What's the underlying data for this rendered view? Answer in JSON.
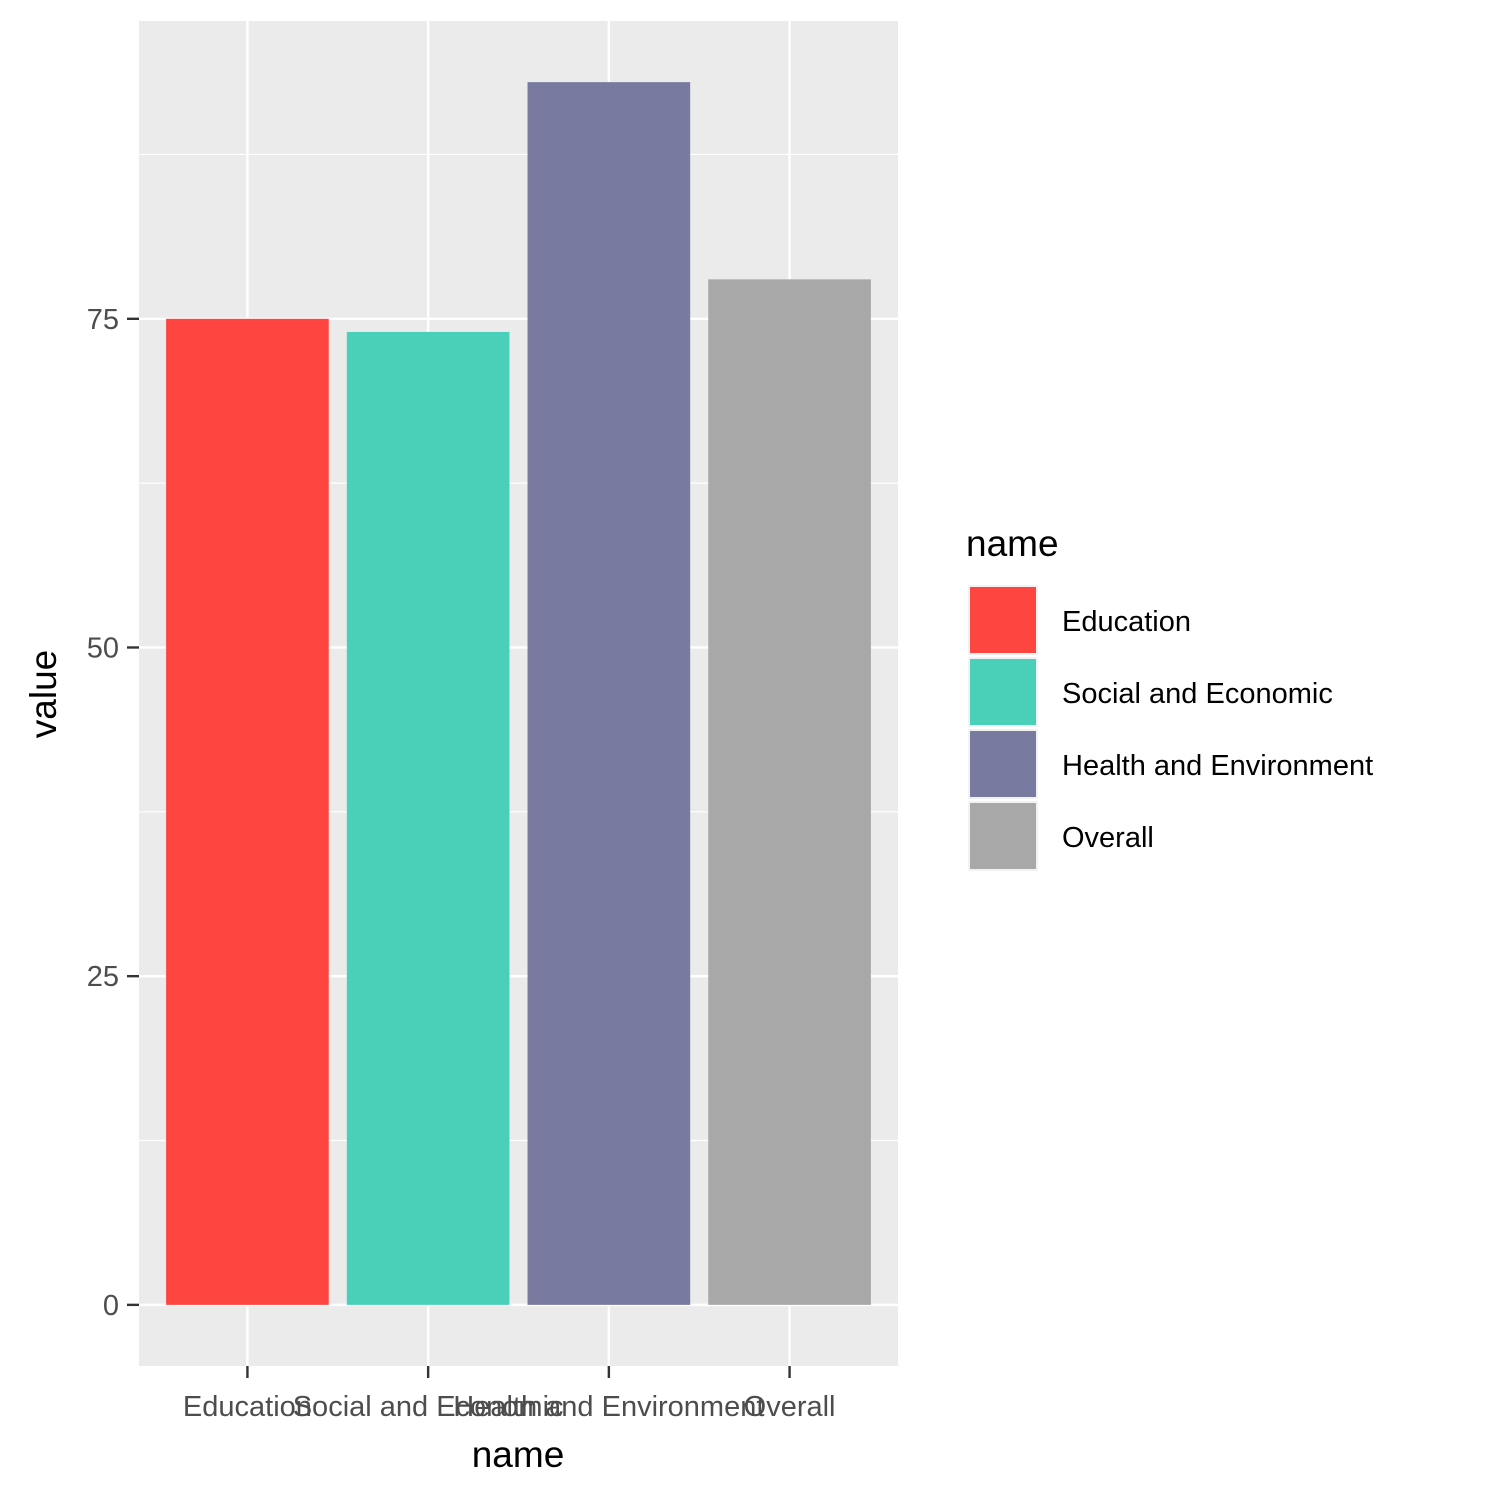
{
  "chart_data": {
    "type": "bar",
    "xlabel": "name",
    "ylabel": "value",
    "categories": [
      "Education",
      "Social and Economic",
      "Health and Environment",
      "Overall"
    ],
    "values": [
      75,
      74,
      93,
      78
    ],
    "colors": [
      "#FF4540",
      "#4AD0B8",
      "#797A9F",
      "#A8A8A8"
    ],
    "yticks": [
      0,
      25,
      50,
      75
    ],
    "ylim": [
      -4.65,
      97.65
    ],
    "grid": true,
    "panel_background": "#EBEBEB",
    "legend": {
      "title": "name",
      "position": "right",
      "entries": [
        "Education",
        "Social and Economic",
        "Health and Environment",
        "Overall"
      ]
    }
  }
}
